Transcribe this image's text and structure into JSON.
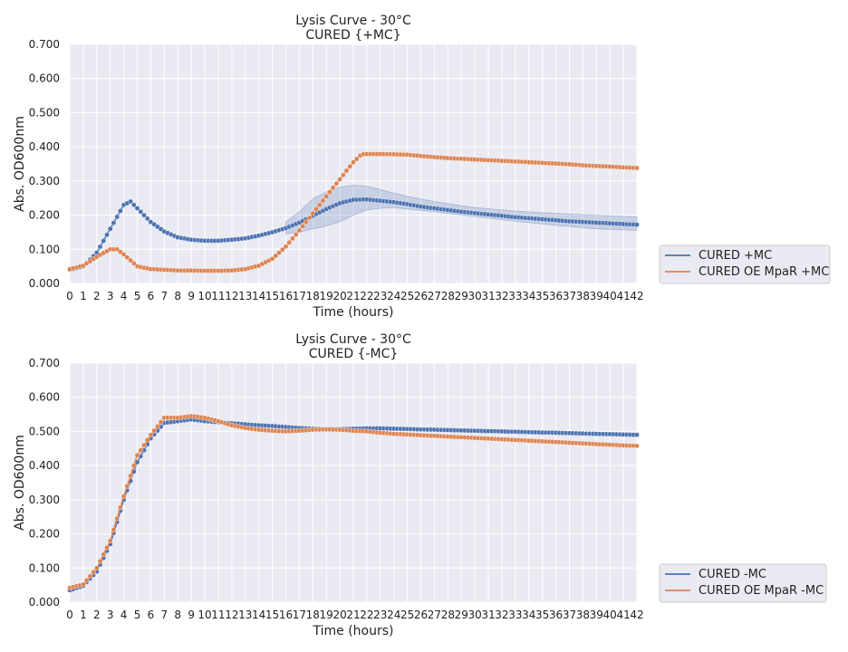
{
  "chart_data": [
    {
      "type": "line",
      "title": "Lysis Curve - 30°C",
      "subtitle": "CURED {+MC}",
      "xlabel": "Time (hours)",
      "ylabel": "Abs. OD600nm",
      "xlim": [
        0,
        42
      ],
      "ylim": [
        0,
        0.7
      ],
      "x_ticks": [
        "0",
        "1",
        "2",
        "3",
        "4",
        "5",
        "6",
        "7",
        "8",
        "9",
        "10",
        "11",
        "12",
        "13",
        "14",
        "15",
        "16",
        "17",
        "18",
        "19",
        "20",
        "21",
        "22",
        "23",
        "24",
        "25",
        "26",
        "27",
        "28",
        "29",
        "30",
        "31",
        "32",
        "33",
        "34",
        "35",
        "36",
        "37",
        "38",
        "39",
        "40",
        "41",
        "42"
      ],
      "y_ticks": [
        "0.000",
        "0.100",
        "0.200",
        "0.300",
        "0.400",
        "0.500",
        "0.600",
        "0.700"
      ],
      "grid": true,
      "legend_position": "outside-right",
      "series": [
        {
          "name": "CURED +MC",
          "color": "#4c72b0",
          "points": [
            [
              0,
              0.04
            ],
            [
              1,
              0.05
            ],
            [
              2,
              0.09
            ],
            [
              3,
              0.16
            ],
            [
              4,
              0.23
            ],
            [
              4.5,
              0.24
            ],
            [
              5,
              0.22
            ],
            [
              6,
              0.18
            ],
            [
              7,
              0.152
            ],
            [
              8,
              0.135
            ],
            [
              9,
              0.128
            ],
            [
              10,
              0.125
            ],
            [
              11,
              0.125
            ],
            [
              12,
              0.128
            ],
            [
              13,
              0.132
            ],
            [
              14,
              0.14
            ],
            [
              15,
              0.15
            ],
            [
              16,
              0.162
            ],
            [
              17,
              0.178
            ],
            [
              18,
              0.198
            ],
            [
              19,
              0.218
            ],
            [
              20,
              0.235
            ],
            [
              21,
              0.245
            ],
            [
              22,
              0.246
            ],
            [
              23,
              0.242
            ],
            [
              24,
              0.238
            ],
            [
              25,
              0.232
            ],
            [
              26,
              0.225
            ],
            [
              27,
              0.22
            ],
            [
              28,
              0.215
            ],
            [
              29,
              0.21
            ],
            [
              30,
              0.206
            ],
            [
              31,
              0.202
            ],
            [
              32,
              0.198
            ],
            [
              33,
              0.194
            ],
            [
              34,
              0.191
            ],
            [
              35,
              0.188
            ],
            [
              36,
              0.185
            ],
            [
              37,
              0.182
            ],
            [
              38,
              0.18
            ],
            [
              39,
              0.178
            ],
            [
              40,
              0.176
            ],
            [
              41,
              0.174
            ],
            [
              42,
              0.172
            ]
          ],
          "band": [
            [
              16,
              0.145,
              0.18
            ],
            [
              17,
              0.15,
              0.21
            ],
            [
              18,
              0.16,
              0.248
            ],
            [
              19,
              0.168,
              0.268
            ],
            [
              20,
              0.18,
              0.282
            ],
            [
              21,
              0.2,
              0.288
            ],
            [
              22,
              0.215,
              0.285
            ],
            [
              23,
              0.22,
              0.275
            ],
            [
              24,
              0.222,
              0.265
            ],
            [
              25,
              0.218,
              0.255
            ],
            [
              27,
              0.21,
              0.24
            ],
            [
              30,
              0.196,
              0.222
            ],
            [
              33,
              0.182,
              0.212
            ],
            [
              36,
              0.17,
              0.205
            ],
            [
              39,
              0.16,
              0.2
            ],
            [
              42,
              0.155,
              0.195
            ]
          ]
        },
        {
          "name": "CURED OE MpaR +MC",
          "color": "#dd8452",
          "points": [
            [
              0,
              0.042
            ],
            [
              1,
              0.052
            ],
            [
              2,
              0.078
            ],
            [
              3,
              0.1
            ],
            [
              3.5,
              0.1
            ],
            [
              4,
              0.085
            ],
            [
              5,
              0.05
            ],
            [
              6,
              0.042
            ],
            [
              7,
              0.04
            ],
            [
              8,
              0.038
            ],
            [
              9,
              0.038
            ],
            [
              10,
              0.037
            ],
            [
              11,
              0.037
            ],
            [
              12,
              0.038
            ],
            [
              13,
              0.042
            ],
            [
              14,
              0.052
            ],
            [
              15,
              0.072
            ],
            [
              16,
              0.108
            ],
            [
              17,
              0.155
            ],
            [
              18,
              0.205
            ],
            [
              19,
              0.255
            ],
            [
              20,
              0.305
            ],
            [
              21,
              0.355
            ],
            [
              21.6,
              0.378
            ],
            [
              22,
              0.379
            ],
            [
              23,
              0.379
            ],
            [
              24,
              0.378
            ],
            [
              25,
              0.377
            ],
            [
              26,
              0.373
            ],
            [
              27,
              0.37
            ],
            [
              28,
              0.367
            ],
            [
              29,
              0.365
            ],
            [
              30,
              0.363
            ],
            [
              31,
              0.361
            ],
            [
              32,
              0.359
            ],
            [
              33,
              0.357
            ],
            [
              34,
              0.355
            ],
            [
              35,
              0.353
            ],
            [
              36,
              0.351
            ],
            [
              37,
              0.349
            ],
            [
              38,
              0.346
            ],
            [
              39,
              0.344
            ],
            [
              40,
              0.342
            ],
            [
              41,
              0.34
            ],
            [
              42,
              0.338
            ]
          ],
          "band": []
        }
      ]
    },
    {
      "type": "line",
      "title": "Lysis Curve - 30°C",
      "subtitle": "CURED {-MC}",
      "xlabel": "Time (hours)",
      "ylabel": "Abs. OD600nm",
      "xlim": [
        0,
        42
      ],
      "ylim": [
        0,
        0.7
      ],
      "x_ticks": [
        "0",
        "1",
        "2",
        "3",
        "4",
        "5",
        "6",
        "7",
        "8",
        "9",
        "10",
        "11",
        "12",
        "13",
        "14",
        "15",
        "16",
        "17",
        "18",
        "19",
        "20",
        "21",
        "22",
        "23",
        "24",
        "25",
        "26",
        "27",
        "28",
        "29",
        "30",
        "31",
        "32",
        "33",
        "34",
        "35",
        "36",
        "37",
        "38",
        "39",
        "40",
        "41",
        "42"
      ],
      "y_ticks": [
        "0.000",
        "0.100",
        "0.200",
        "0.300",
        "0.400",
        "0.500",
        "0.600",
        "0.700"
      ],
      "grid": true,
      "legend_position": "outside-right",
      "series": [
        {
          "name": "CURED -MC",
          "color": "#4c72b0",
          "points": [
            [
              0,
              0.035
            ],
            [
              1,
              0.048
            ],
            [
              2,
              0.09
            ],
            [
              3,
              0.17
            ],
            [
              4,
              0.3
            ],
            [
              5,
              0.41
            ],
            [
              6,
              0.48
            ],
            [
              7,
              0.525
            ],
            [
              8,
              0.53
            ],
            [
              9,
              0.535
            ],
            [
              10,
              0.53
            ],
            [
              11,
              0.527
            ],
            [
              12,
              0.524
            ],
            [
              13,
              0.521
            ],
            [
              14,
              0.518
            ],
            [
              15,
              0.516
            ],
            [
              16,
              0.513
            ],
            [
              17,
              0.51
            ],
            [
              18,
              0.508
            ],
            [
              19,
              0.507
            ],
            [
              20,
              0.507
            ],
            [
              21,
              0.508
            ],
            [
              22,
              0.509
            ],
            [
              23,
              0.509
            ],
            [
              24,
              0.508
            ],
            [
              25,
              0.507
            ],
            [
              26,
              0.506
            ],
            [
              27,
              0.505
            ],
            [
              28,
              0.504
            ],
            [
              29,
              0.503
            ],
            [
              30,
              0.502
            ],
            [
              31,
              0.501
            ],
            [
              32,
              0.5
            ],
            [
              33,
              0.499
            ],
            [
              34,
              0.498
            ],
            [
              35,
              0.497
            ],
            [
              36,
              0.496
            ],
            [
              37,
              0.495
            ],
            [
              38,
              0.494
            ],
            [
              39,
              0.493
            ],
            [
              40,
              0.492
            ],
            [
              41,
              0.491
            ],
            [
              42,
              0.49
            ]
          ],
          "band": []
        },
        {
          "name": "CURED OE MpaR -MC",
          "color": "#dd8452",
          "points": [
            [
              0,
              0.042
            ],
            [
              1,
              0.052
            ],
            [
              2,
              0.1
            ],
            [
              3,
              0.18
            ],
            [
              4,
              0.31
            ],
            [
              5,
              0.43
            ],
            [
              6,
              0.49
            ],
            [
              7,
              0.54
            ],
            [
              8,
              0.54
            ],
            [
              9,
              0.545
            ],
            [
              10,
              0.54
            ],
            [
              11,
              0.53
            ],
            [
              12,
              0.518
            ],
            [
              13,
              0.51
            ],
            [
              14,
              0.505
            ],
            [
              15,
              0.502
            ],
            [
              16,
              0.5
            ],
            [
              17,
              0.502
            ],
            [
              18,
              0.505
            ],
            [
              19,
              0.506
            ],
            [
              20,
              0.505
            ],
            [
              21,
              0.502
            ],
            [
              22,
              0.5
            ],
            [
              23,
              0.496
            ],
            [
              24,
              0.493
            ],
            [
              25,
              0.491
            ],
            [
              26,
              0.489
            ],
            [
              27,
              0.487
            ],
            [
              28,
              0.485
            ],
            [
              29,
              0.483
            ],
            [
              30,
              0.481
            ],
            [
              31,
              0.479
            ],
            [
              32,
              0.477
            ],
            [
              33,
              0.475
            ],
            [
              34,
              0.473
            ],
            [
              35,
              0.471
            ],
            [
              36,
              0.469
            ],
            [
              37,
              0.467
            ],
            [
              38,
              0.465
            ],
            [
              39,
              0.463
            ],
            [
              40,
              0.461
            ],
            [
              41,
              0.459
            ],
            [
              42,
              0.458
            ]
          ],
          "band": []
        }
      ]
    }
  ]
}
